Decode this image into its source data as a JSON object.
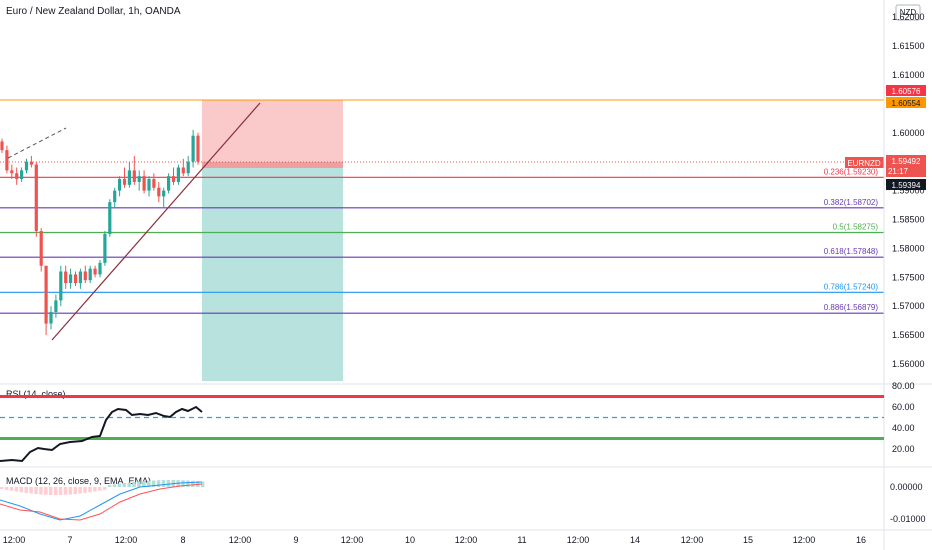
{
  "header": {
    "title": "Euro / New Zealand Dollar, 1h, OANDA",
    "currency": "NZD"
  },
  "price_axis": {
    "labels": [
      "1.62000",
      "1.61500",
      "1.61000",
      "1.60000",
      "1.59000",
      "1.58500",
      "1.58000",
      "1.57500",
      "1.57000",
      "1.56500",
      "1.56000"
    ],
    "values": [
      1.62,
      1.615,
      1.61,
      1.6,
      1.59,
      1.585,
      1.58,
      1.575,
      1.57,
      1.565,
      1.56
    ]
  },
  "price_tags": {
    "target_1": "1.60576",
    "target_2": "1.60554",
    "symbol": "EURNZD",
    "last": "1.59492",
    "countdown": "21:17",
    "stop": "1.59394"
  },
  "fib_levels": [
    {
      "label": "0.236(1.59230)",
      "value": 1.5923,
      "color": "#f23645"
    },
    {
      "label": "0.382(1.58702)",
      "value": 1.58702,
      "color": "#673ab7"
    },
    {
      "label": "0.5(1.58275)",
      "value": 1.58275,
      "color": "#4caf50"
    },
    {
      "label": "0.618(1.57848)",
      "value": 1.57848,
      "color": "#673ab7"
    },
    {
      "label": "0.786(1.57240)",
      "value": 1.5724,
      "color": "#2196f3"
    },
    {
      "label": "0.886(1.56879)",
      "value": 1.56879,
      "color": "#673ab7"
    }
  ],
  "rsi": {
    "label": "RSI (14, close)",
    "ticks": [
      "80.00",
      "60.00",
      "40.00",
      "20.00"
    ],
    "tick_values": [
      80,
      60,
      40,
      20
    ],
    "upper_band": 70,
    "lower_band": 30,
    "mid": 50
  },
  "macd": {
    "label": "MACD (12, 26, close, 9, EMA, EMA)",
    "ticks": [
      "0.00000",
      "-0.01000"
    ],
    "tick_values": [
      0,
      -0.01
    ]
  },
  "time_axis": {
    "labels": [
      "12:00",
      "7",
      "12:00",
      "8",
      "12:00",
      "9",
      "12:00",
      "10",
      "12:00",
      "11",
      "12:00",
      "14",
      "12:00",
      "15",
      "12:00",
      "16"
    ]
  },
  "colors": {
    "up": "#26a69a",
    "down": "#ef5350",
    "risk_zone": "#f8c1c0",
    "reward_zone": "#b3e0dc",
    "orange": "#ff9800",
    "rsi_line": "#131722",
    "macd_line": "#2196f3",
    "signal_line": "#ff5252"
  },
  "chart_data": {
    "type": "candlestick",
    "title": "Euro / New Zealand Dollar, 1h, OANDA",
    "y_range": [
      1.5585,
      1.6225
    ],
    "candles": [
      {
        "o": 1.5985,
        "h": 1.599,
        "l": 1.5965,
        "c": 1.597
      },
      {
        "o": 1.597,
        "h": 1.5978,
        "l": 1.593,
        "c": 1.5935
      },
      {
        "o": 1.5935,
        "h": 1.5945,
        "l": 1.592,
        "c": 1.593
      },
      {
        "o": 1.593,
        "h": 1.594,
        "l": 1.591,
        "c": 1.592
      },
      {
        "o": 1.592,
        "h": 1.594,
        "l": 1.5915,
        "c": 1.5935
      },
      {
        "o": 1.5935,
        "h": 1.5955,
        "l": 1.593,
        "c": 1.595
      },
      {
        "o": 1.595,
        "h": 1.596,
        "l": 1.594,
        "c": 1.5945
      },
      {
        "o": 1.5945,
        "h": 1.595,
        "l": 1.582,
        "c": 1.583
      },
      {
        "o": 1.583,
        "h": 1.5835,
        "l": 1.576,
        "c": 1.577
      },
      {
        "o": 1.577,
        "h": 1.577,
        "l": 1.565,
        "c": 1.567
      },
      {
        "o": 1.567,
        "h": 1.57,
        "l": 1.566,
        "c": 1.569
      },
      {
        "o": 1.569,
        "h": 1.572,
        "l": 1.568,
        "c": 1.571
      },
      {
        "o": 1.571,
        "h": 1.577,
        "l": 1.57,
        "c": 1.576
      },
      {
        "o": 1.576,
        "h": 1.577,
        "l": 1.573,
        "c": 1.574
      },
      {
        "o": 1.574,
        "h": 1.5765,
        "l": 1.573,
        "c": 1.5755
      },
      {
        "o": 1.5755,
        "h": 1.576,
        "l": 1.5735,
        "c": 1.574
      },
      {
        "o": 1.574,
        "h": 1.5765,
        "l": 1.573,
        "c": 1.576
      },
      {
        "o": 1.576,
        "h": 1.577,
        "l": 1.574,
        "c": 1.5745
      },
      {
        "o": 1.5745,
        "h": 1.577,
        "l": 1.574,
        "c": 1.5765
      },
      {
        "o": 1.5765,
        "h": 1.577,
        "l": 1.575,
        "c": 1.5755
      },
      {
        "o": 1.5755,
        "h": 1.578,
        "l": 1.575,
        "c": 1.5775
      },
      {
        "o": 1.5775,
        "h": 1.583,
        "l": 1.577,
        "c": 1.5825
      },
      {
        "o": 1.5825,
        "h": 1.5885,
        "l": 1.582,
        "c": 1.588
      },
      {
        "o": 1.588,
        "h": 1.5905,
        "l": 1.587,
        "c": 1.59
      },
      {
        "o": 1.59,
        "h": 1.5925,
        "l": 1.589,
        "c": 1.592
      },
      {
        "o": 1.592,
        "h": 1.594,
        "l": 1.5905,
        "c": 1.591
      },
      {
        "o": 1.591,
        "h": 1.595,
        "l": 1.5905,
        "c": 1.5935
      },
      {
        "o": 1.5935,
        "h": 1.596,
        "l": 1.591,
        "c": 1.5915
      },
      {
        "o": 1.5915,
        "h": 1.5935,
        "l": 1.59,
        "c": 1.5925
      },
      {
        "o": 1.5925,
        "h": 1.5935,
        "l": 1.5895,
        "c": 1.59
      },
      {
        "o": 1.59,
        "h": 1.5925,
        "l": 1.589,
        "c": 1.592
      },
      {
        "o": 1.592,
        "h": 1.593,
        "l": 1.59,
        "c": 1.5905
      },
      {
        "o": 1.5905,
        "h": 1.5915,
        "l": 1.588,
        "c": 1.589
      },
      {
        "o": 1.589,
        "h": 1.5905,
        "l": 1.587,
        "c": 1.59
      },
      {
        "o": 1.59,
        "h": 1.593,
        "l": 1.5895,
        "c": 1.5925
      },
      {
        "o": 1.5925,
        "h": 1.594,
        "l": 1.591,
        "c": 1.5915
      },
      {
        "o": 1.5915,
        "h": 1.5945,
        "l": 1.591,
        "c": 1.594
      },
      {
        "o": 1.594,
        "h": 1.5955,
        "l": 1.5925,
        "c": 1.593
      },
      {
        "o": 1.593,
        "h": 1.596,
        "l": 1.5925,
        "c": 1.595
      },
      {
        "o": 1.595,
        "h": 1.6005,
        "l": 1.594,
        "c": 1.5995
      },
      {
        "o": 1.5995,
        "h": 1.6,
        "l": 1.5945,
        "c": 1.595
      }
    ]
  }
}
